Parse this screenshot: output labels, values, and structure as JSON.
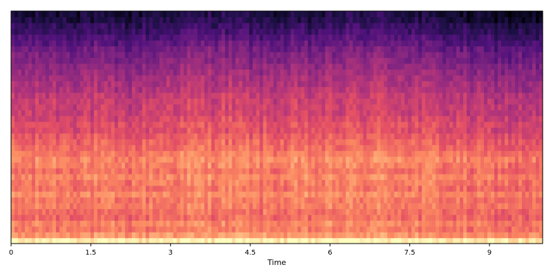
{
  "chart_data": {
    "type": "heatmap",
    "title": "",
    "xlabel": "Time",
    "ylabel": "",
    "xlim": [
      0,
      10
    ],
    "x_ticks": [
      0,
      1.5,
      3,
      4.5,
      6,
      7.5,
      9
    ],
    "x_tick_labels": [
      "0",
      "1.5",
      "3",
      "4.5",
      "6",
      "7.5",
      "9"
    ],
    "y_ticks": [],
    "grid": false,
    "legend": "none",
    "colormap": "magma",
    "colormap_stops": [
      "#000004",
      "#1c1044",
      "#4f127b",
      "#812581",
      "#b5367a",
      "#e55064",
      "#fb8761",
      "#fec287",
      "#fcfdbf"
    ],
    "band_levels": [
      0.97,
      0.78,
      0.72,
      0.74,
      0.68,
      0.69,
      0.72,
      0.71,
      0.75,
      0.7,
      0.72,
      0.74,
      0.7,
      0.73,
      0.75,
      0.72,
      0.68,
      0.66,
      0.63,
      0.6,
      0.61,
      0.58,
      0.55,
      0.55,
      0.54,
      0.52,
      0.49,
      0.47,
      0.45,
      0.42,
      0.4,
      0.37,
      0.35,
      0.32,
      0.28,
      0.24,
      0.2,
      0.17,
      0.12,
      0.1
    ],
    "time_envelope": [
      {
        "t": 0.0,
        "offset": 0.0
      },
      {
        "t": 1.5,
        "offset": 0.01
      },
      {
        "t": 2.0,
        "offset": -0.03
      },
      {
        "t": 3.0,
        "offset": 0.03
      },
      {
        "t": 4.0,
        "offset": 0.05
      },
      {
        "t": 4.5,
        "offset": 0.02
      },
      {
        "t": 5.5,
        "offset": 0.01
      },
      {
        "t": 7.0,
        "offset": 0.05
      },
      {
        "t": 8.0,
        "offset": 0.0
      },
      {
        "t": 9.0,
        "offset": -0.05
      },
      {
        "t": 10.0,
        "offset": -0.06
      }
    ]
  }
}
